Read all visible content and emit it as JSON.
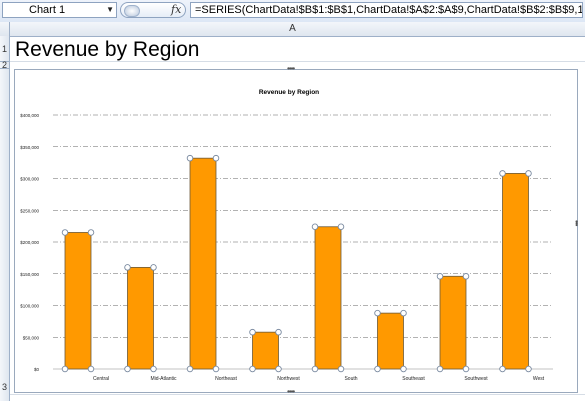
{
  "formula_bar": {
    "name_box": "Chart 1",
    "formula": "=SERIES(ChartData!$B$1:$B$1,ChartData!$A$2:$A$9,ChartData!$B$2:$B$9,1)",
    "fx_icon": "fx-icon",
    "fx_label": "fx",
    "dropdown_icon": "chevron-down-icon"
  },
  "sheet": {
    "column_label": "A",
    "row_labels": [
      "1",
      "2",
      "3"
    ],
    "title": "Revenue by Region"
  },
  "colors": {
    "bar_fill": "#ff9900",
    "bar_stroke": "#6b5a3a",
    "marker_fill": "#ffffff",
    "marker_stroke": "#7a8aa0"
  },
  "chart_data": {
    "type": "bar",
    "title": "Revenue by Region",
    "categories": [
      "Central",
      "Mid-Atlantic",
      "Northeast",
      "Northwest",
      "South",
      "Southeast",
      "Southwest",
      "West"
    ],
    "series": [
      {
        "values": [
          215000,
          160000,
          332000,
          58000,
          224000,
          88000,
          146000,
          308000
        ]
      }
    ],
    "ylim": [
      0,
      400000
    ],
    "yticks": [
      "$0",
      "$50,000",
      "$100,000",
      "$150,000",
      "$200,000",
      "$250,000",
      "$300,000",
      "$350,000",
      "$400,000"
    ],
    "grid": true,
    "legend": "none"
  }
}
